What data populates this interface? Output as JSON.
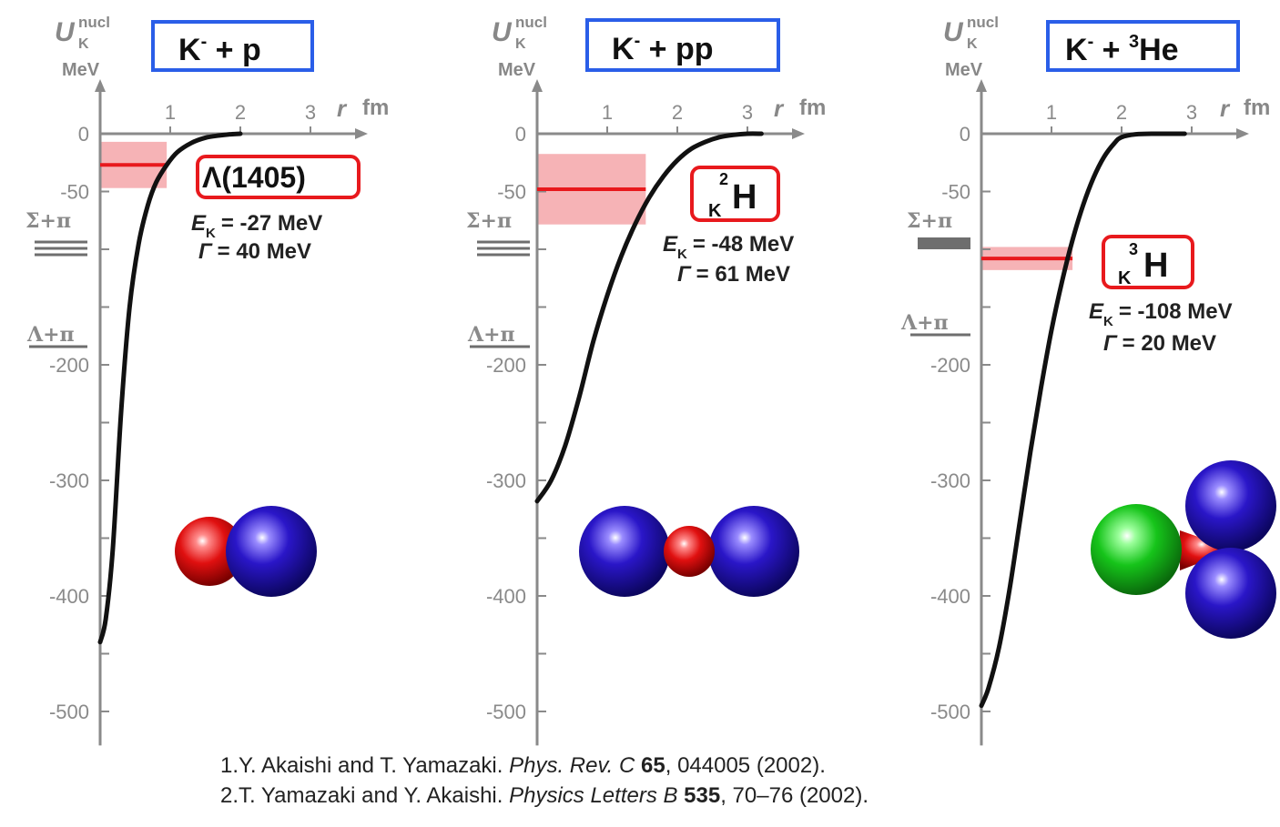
{
  "chart_data": [
    {
      "type": "line",
      "title_box": {
        "main": "K",
        "sup": "-",
        "rest": " + p"
      },
      "ylabel": {
        "symbol": "U",
        "sub": "K",
        "sup": "nucl",
        "unit": "MeV"
      },
      "xlabel": {
        "symbol": "r",
        "unit": "fm"
      },
      "xlim": [
        0,
        3.5
      ],
      "ylim": [
        -520,
        0
      ],
      "x_ticks": [
        1,
        2,
        3
      ],
      "y_ticks": [
        0,
        -50,
        -200,
        -300,
        -400,
        -500
      ],
      "curve": {
        "x": [
          0,
          0.08,
          0.18,
          0.3,
          0.42,
          0.55,
          0.68,
          0.8,
          0.95,
          1.1,
          1.3,
          1.5,
          1.7,
          1.85,
          2.0
        ],
        "y": [
          -440,
          -420,
          -360,
          -240,
          -150,
          -95,
          -62,
          -42,
          -27,
          -16,
          -8,
          -3.5,
          -1.5,
          -0.5,
          0
        ]
      },
      "level": {
        "energy": -27,
        "width": 40,
        "state_label": "Λ(1405)",
        "E_symbol": "E",
        "E_sub": "K",
        "E_text": "= -27 MeV",
        "G_symbol": "Γ",
        "G_text": "= 40 MeV"
      },
      "thresholds": [
        {
          "label": "Σ+π"
        },
        {
          "label": "Λ+π"
        }
      ],
      "molecule": "K- + p"
    },
    {
      "type": "line",
      "title_box": {
        "main": "K",
        "sup": "-",
        "rest": " + pp"
      },
      "ylabel": {
        "symbol": "U",
        "sub": "K",
        "sup": "nucl",
        "unit": "MeV"
      },
      "xlabel": {
        "symbol": "r",
        "unit": "fm"
      },
      "xlim": [
        0,
        3.5
      ],
      "ylim": [
        -520,
        0
      ],
      "x_ticks": [
        1,
        2,
        3
      ],
      "y_ticks": [
        0,
        -50,
        -200,
        -300,
        -400,
        -500
      ],
      "curve": {
        "x": [
          0,
          0.2,
          0.4,
          0.6,
          0.8,
          1.0,
          1.2,
          1.4,
          1.6,
          1.8,
          2.0,
          2.2,
          2.4,
          2.6,
          2.8,
          3.0,
          3.2
        ],
        "y": [
          -318,
          -300,
          -270,
          -228,
          -180,
          -140,
          -106,
          -78,
          -55,
          -37,
          -23,
          -13,
          -7,
          -3,
          -1,
          0,
          0
        ]
      },
      "level": {
        "energy": -48,
        "width": 61,
        "state_label_sup": "2",
        "state_label_sub": "K",
        "state_label_main": "H",
        "E_symbol": "E",
        "E_sub": "K",
        "E_text": "= -48 MeV",
        "G_symbol": "Γ",
        "G_text": "= 61 MeV"
      },
      "thresholds": [
        {
          "label": "Σ+π"
        },
        {
          "label": "Λ+π"
        }
      ],
      "molecule": "K- + pp"
    },
    {
      "type": "line",
      "title_box": {
        "main": "K",
        "sup": "-",
        "rest": " + ",
        "nuc_sup": "3",
        "nuc": "He"
      },
      "ylabel": {
        "symbol": "U",
        "sub": "K",
        "sup": "nucl",
        "unit": "MeV"
      },
      "xlabel": {
        "symbol": "r",
        "unit": "fm"
      },
      "xlim": [
        0,
        3.5
      ],
      "ylim": [
        -520,
        0
      ],
      "x_ticks": [
        1,
        2,
        3
      ],
      "y_ticks": [
        0,
        -50,
        -200,
        -300,
        -400,
        -500
      ],
      "curve": {
        "x": [
          0,
          0.1,
          0.25,
          0.4,
          0.55,
          0.7,
          0.85,
          1.0,
          1.15,
          1.3,
          1.45,
          1.6,
          1.75,
          1.9,
          2.0,
          2.2,
          2.5,
          2.9
        ],
        "y": [
          -495,
          -480,
          -445,
          -395,
          -335,
          -275,
          -220,
          -170,
          -128,
          -92,
          -62,
          -38,
          -20,
          -8,
          -3,
          -0.5,
          0,
          0
        ]
      },
      "level": {
        "energy": -108,
        "width": 20,
        "state_label_sup": "3",
        "state_label_sub": "K",
        "state_label_main": "H",
        "E_symbol": "E",
        "E_sub": "K",
        "E_text": "= -108 MeV",
        "G_symbol": "Γ",
        "G_text": "= 20 MeV"
      },
      "thresholds": [
        {
          "label": "Σ+π"
        },
        {
          "label": "Λ+π"
        }
      ],
      "molecule": "K- + 3He"
    }
  ],
  "references": [
    {
      "prefix": "1.Y. Akaishi and T. Yamazaki. ",
      "journal": "Phys. Rev. C ",
      "volume": "65",
      "rest": ", 044005 (2002)."
    },
    {
      "prefix": "2.T. Yamazaki and Y. Akaishi. ",
      "journal": "Physics Letters B ",
      "volume": "535",
      "rest": ", 70–76 (2002)."
    }
  ],
  "colors": {
    "curve": "#111111",
    "level": "#e8191d",
    "band": "#f4a0a4",
    "box_blue": "#2a5ee8",
    "box_red": "#e8191d",
    "proton": "#e01010",
    "nucleon": "#2a16c8",
    "he": "#16c41a"
  }
}
